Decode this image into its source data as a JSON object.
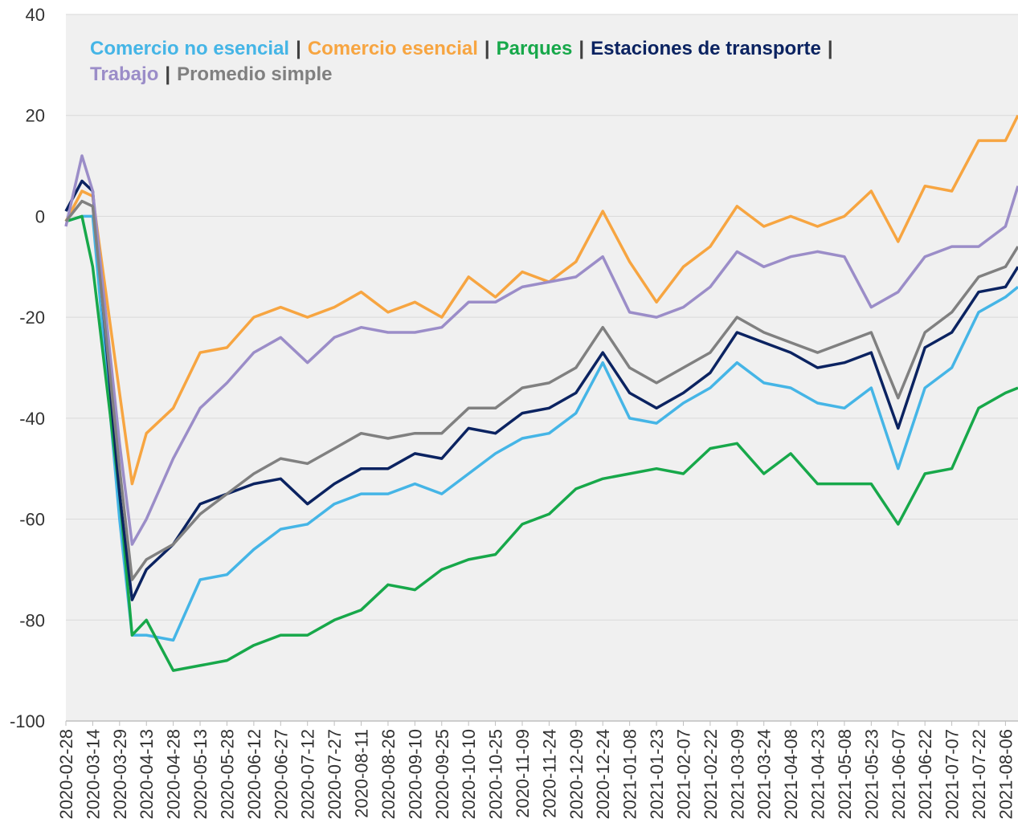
{
  "chart_data": {
    "type": "line",
    "legend_separator": "|",
    "x": [
      "2020-02-28",
      "2020-03-08",
      "2020-03-14",
      "2020-03-29",
      "2020-04-05",
      "2020-04-13",
      "2020-04-28",
      "2020-05-13",
      "2020-05-28",
      "2020-06-12",
      "2020-06-27",
      "2020-07-12",
      "2020-07-27",
      "2020-08-11",
      "2020-08-26",
      "2020-09-10",
      "2020-09-25",
      "2020-10-10",
      "2020-10-25",
      "2020-11-09",
      "2020-11-24",
      "2020-12-09",
      "2020-12-24",
      "2021-01-08",
      "2021-01-23",
      "2021-02-07",
      "2021-02-22",
      "2021-03-09",
      "2021-03-24",
      "2021-04-08",
      "2021-04-23",
      "2021-05-08",
      "2021-05-23",
      "2021-06-07",
      "2021-06-22",
      "2021-07-07",
      "2021-07-22",
      "2021-08-06",
      "2021-08-13"
    ],
    "series": [
      {
        "name": "Comercio no esencial",
        "color": "#45b5e6",
        "values": [
          -1,
          0,
          0,
          -60,
          -83,
          -83,
          -84,
          -72,
          -71,
          -66,
          -62,
          -61,
          -57,
          -55,
          -55,
          -53,
          -55,
          -51,
          -47,
          -44,
          -43,
          -39,
          -29,
          -40,
          -41,
          -37,
          -34,
          -29,
          -33,
          -34,
          -37,
          -38,
          -34,
          -50,
          -34,
          -30,
          -19,
          -16,
          -14
        ]
      },
      {
        "name": "Comercio esencial",
        "color": "#f7a541",
        "values": [
          -1,
          5,
          4,
          -35,
          -53,
          -43,
          -38,
          -27,
          -26,
          -20,
          -18,
          -20,
          -18,
          -15,
          -19,
          -17,
          -20,
          -12,
          -16,
          -11,
          -13,
          -9,
          1,
          -9,
          -17,
          -10,
          -6,
          2,
          -2,
          0,
          -2,
          0,
          5,
          -5,
          6,
          5,
          15,
          15,
          20
        ]
      },
      {
        "name": "Parques",
        "color": "#17a84a",
        "values": [
          -1,
          0,
          -10,
          -55,
          -83,
          -80,
          -90,
          -89,
          -88,
          -85,
          -83,
          -83,
          -80,
          -78,
          -73,
          -74,
          -70,
          -68,
          -67,
          -61,
          -59,
          -54,
          -52,
          -51,
          -50,
          -51,
          -46,
          -45,
          -51,
          -47,
          -53,
          -53,
          -53,
          -61,
          -51,
          -50,
          -38,
          -35,
          -34
        ]
      },
      {
        "name": "Estaciones de transporte",
        "color": "#0b2361",
        "values": [
          1,
          7,
          5,
          -55,
          -76,
          -70,
          -65,
          -57,
          -55,
          -53,
          -52,
          -57,
          -53,
          -50,
          -50,
          -47,
          -48,
          -42,
          -43,
          -39,
          -38,
          -35,
          -27,
          -35,
          -38,
          -35,
          -31,
          -23,
          -25,
          -27,
          -30,
          -29,
          -27,
          -42,
          -26,
          -23,
          -15,
          -14,
          -10
        ]
      },
      {
        "name": "Trabajo",
        "color": "#9b8dc8",
        "values": [
          -2,
          12,
          5,
          -45,
          -65,
          -60,
          -48,
          -38,
          -33,
          -27,
          -24,
          -29,
          -24,
          -22,
          -23,
          -23,
          -22,
          -17,
          -17,
          -14,
          -13,
          -12,
          -8,
          -19,
          -20,
          -18,
          -14,
          -7,
          -10,
          -8,
          -7,
          -8,
          -18,
          -15,
          -8,
          -6,
          -6,
          -2,
          6
        ]
      },
      {
        "name": "Promedio simple",
        "color": "#808080",
        "values": [
          -1,
          3,
          2,
          -50,
          -72,
          -68,
          -65,
          -59,
          -55,
          -51,
          -48,
          -49,
          -46,
          -43,
          -44,
          -43,
          -43,
          -38,
          -38,
          -34,
          -33,
          -30,
          -22,
          -30,
          -33,
          -30,
          -27,
          -20,
          -23,
          -25,
          -27,
          -25,
          -23,
          -36,
          -23,
          -19,
          -12,
          -10,
          -6
        ]
      }
    ],
    "xlim": [
      "2020-02-28",
      "2021-08-13"
    ],
    "xticks": [
      "2020-02-28",
      "2020-03-14",
      "2020-03-29",
      "2020-04-13",
      "2020-04-28",
      "2020-05-13",
      "2020-05-28",
      "2020-06-12",
      "2020-06-27",
      "2020-07-12",
      "2020-07-27",
      "2020-08-11",
      "2020-08-26",
      "2020-09-10",
      "2020-09-25",
      "2020-10-10",
      "2020-10-25",
      "2020-11-09",
      "2020-11-24",
      "2020-12-09",
      "2020-12-24",
      "2021-01-08",
      "2021-01-23",
      "2021-02-07",
      "2021-02-22",
      "2021-03-09",
      "2021-03-24",
      "2021-04-08",
      "2021-04-23",
      "2021-05-08",
      "2021-05-23",
      "2021-06-07",
      "2021-06-22",
      "2021-07-07",
      "2021-07-22",
      "2021-08-06"
    ],
    "ylim": [
      -100,
      40
    ],
    "yticks": [
      -100,
      -80,
      -60,
      -40,
      -20,
      0,
      20,
      40
    ],
    "grid": true
  }
}
